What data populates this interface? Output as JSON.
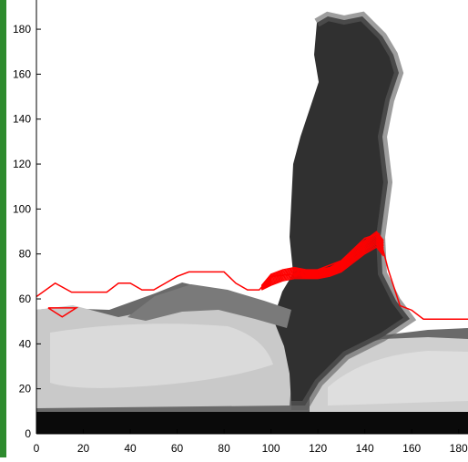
{
  "colors": {
    "side_bar": "#2e8b2e",
    "contour": "#ff0000",
    "plot_bg": "#ffffff",
    "dark_region": "#333333",
    "mid_gray": "#5a5a5a",
    "light_gray": "#b8b8b8",
    "bright": "#d9d9d9",
    "black": "#0a0a0a"
  },
  "chart_data": {
    "type": "image-with-contours",
    "title": "",
    "xlabel": "",
    "ylabel": "",
    "xlim": [
      0,
      184
    ],
    "ylim": [
      0,
      193
    ],
    "xticks": [
      0,
      20,
      40,
      60,
      80,
      100,
      120,
      140,
      160,
      180
    ],
    "yticks": [
      0,
      20,
      40,
      60,
      80,
      100,
      120,
      140,
      160,
      180
    ],
    "xtick_labels": [
      "0",
      "20",
      "40",
      "60",
      "80",
      "100",
      "120",
      "140",
      "160",
      "180"
    ],
    "ytick_labels": [
      "0",
      "20",
      "40",
      "60",
      "80",
      "100",
      "120",
      "140",
      "160",
      "180"
    ],
    "boundary_contour": {
      "name": "",
      "x": [
        0,
        8,
        15,
        30,
        35,
        40,
        45,
        50,
        55,
        60,
        65,
        70,
        75,
        80,
        85,
        90,
        95,
        100,
        110,
        120,
        130,
        140,
        146,
        150,
        155,
        160,
        165,
        170,
        175,
        184
      ],
      "y": [
        61,
        67,
        63,
        63,
        67,
        67,
        64,
        64,
        67,
        70,
        72,
        72,
        72,
        72,
        67,
        64,
        64,
        70,
        71,
        73,
        77,
        87,
        89,
        73,
        57,
        55,
        51,
        51,
        51,
        51
      ]
    },
    "small_triangle": {
      "x": [
        5,
        17,
        11,
        5
      ],
      "y": [
        56,
        56,
        52,
        56
      ]
    },
    "band_contours": {
      "count": 12,
      "x": [
        96,
        100,
        105,
        110,
        115,
        120,
        125,
        130,
        135,
        140,
        145,
        148
      ],
      "y_lower": [
        64,
        66,
        68,
        69,
        69,
        69,
        70,
        72,
        76,
        80,
        83,
        79
      ],
      "y_upper": [
        66,
        71,
        73,
        74,
        73,
        73,
        74,
        77,
        82,
        86,
        90,
        86
      ]
    }
  }
}
